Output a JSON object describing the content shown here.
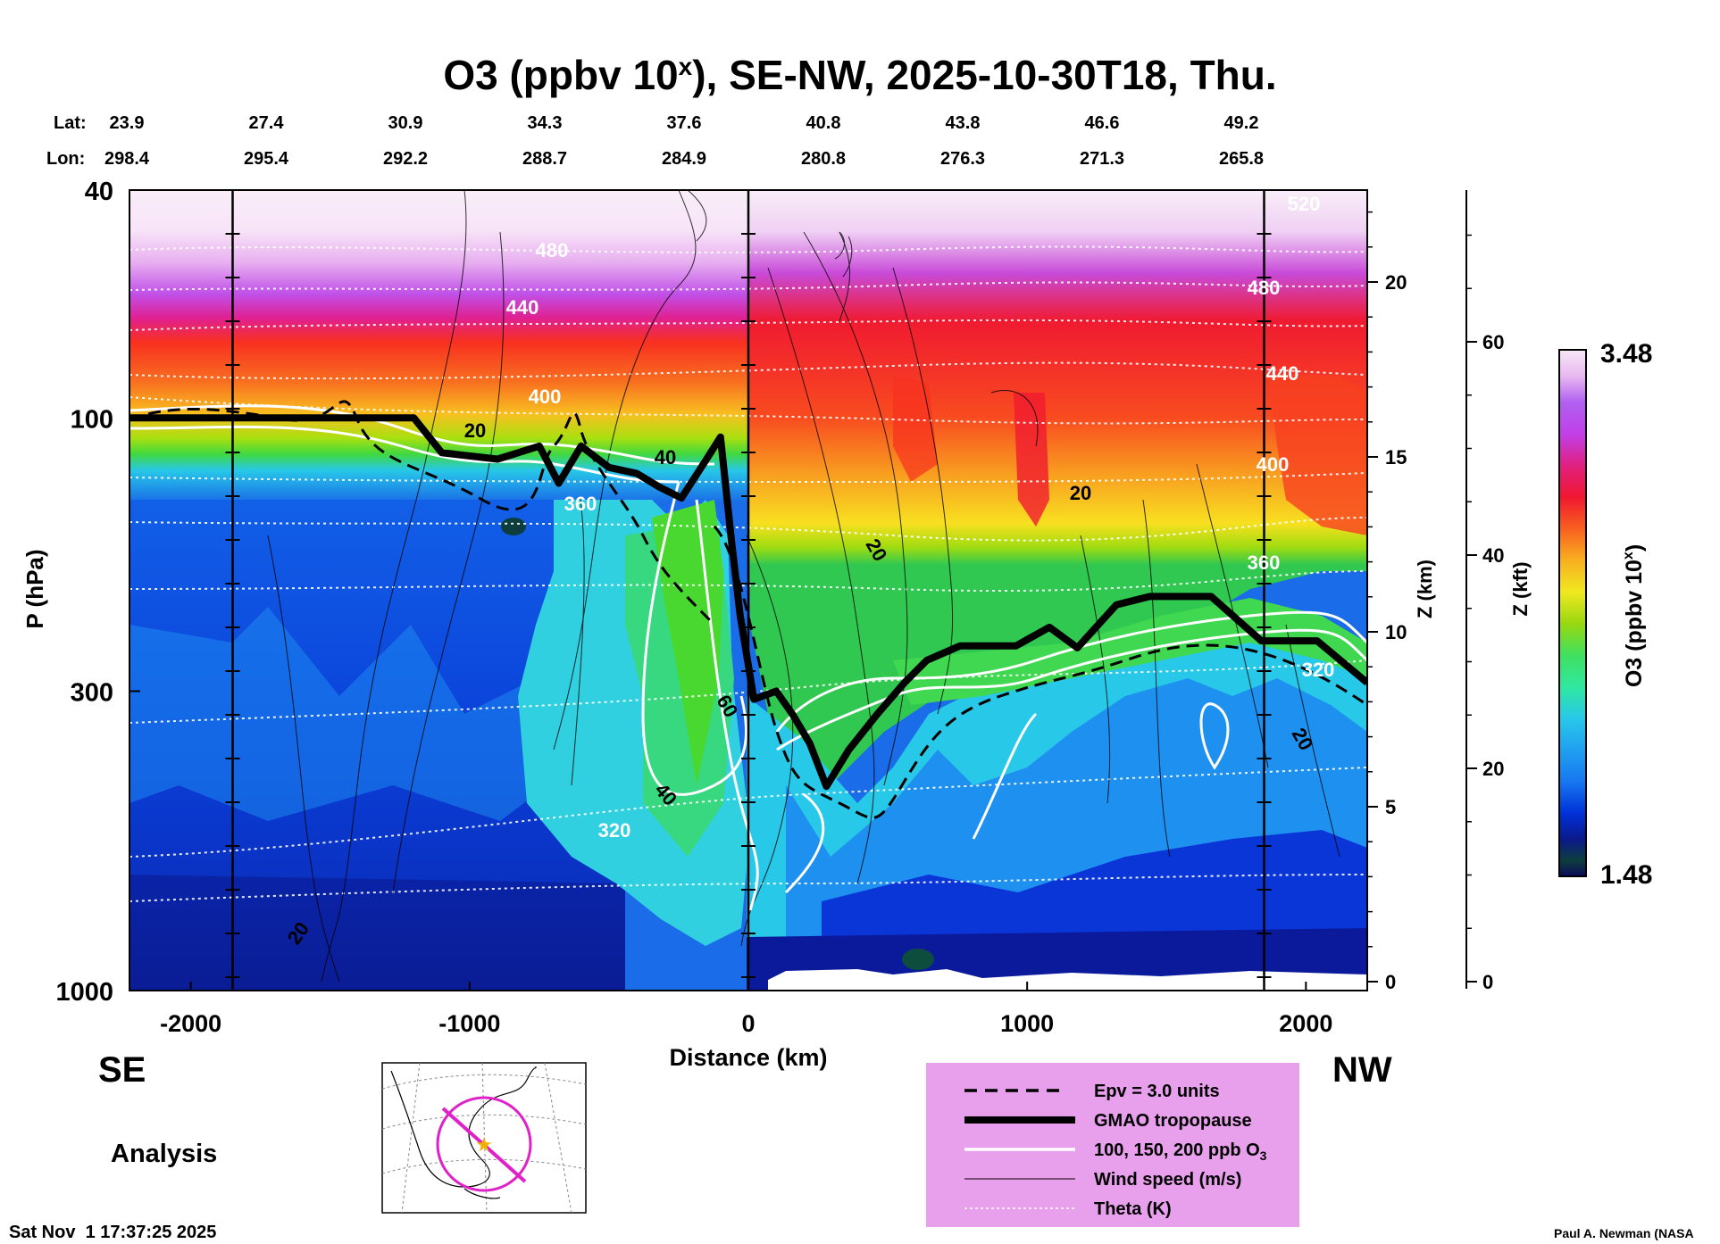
{
  "chart_data": {
    "type": "heatmap",
    "title": "O3 (ppbv 10",
    "title_sup": "x",
    "title_rest": "), SE-NW, 2025-10-30T18, Thu.",
    "xlabel": "Distance (km)",
    "ylabel": "P (hPa)",
    "y2label": "Z (km)",
    "y3label": "Z (kft)",
    "x_ticks": [
      "-2000",
      "-1000",
      "0",
      "1000",
      "2000"
    ],
    "x_tick_values": [
      -2000,
      -1000,
      0,
      1000,
      2000
    ],
    "xlim": [
      -2220,
      2220
    ],
    "y_ticks": [
      "40",
      "100",
      "300",
      "1000"
    ],
    "y_tick_values": [
      40,
      100,
      300,
      1000
    ],
    "ylim": [
      1000,
      40
    ],
    "z_km_ticks": [
      "0",
      "5",
      "10",
      "15",
      "20"
    ],
    "z_km_values": [
      0,
      5,
      10,
      15,
      20
    ],
    "z_kft_ticks": [
      "0",
      "20",
      "40",
      "60"
    ],
    "z_kft_values": [
      0,
      20,
      40,
      60
    ],
    "lat_label": "Lat:",
    "lon_label": "Lon:",
    "lat": [
      "23.9",
      "27.4",
      "30.9",
      "34.3",
      "37.6",
      "40.8",
      "43.8",
      "46.6",
      "49.2"
    ],
    "lon": [
      "298.4",
      "295.4",
      "292.2",
      "288.7",
      "284.9",
      "280.8",
      "276.3",
      "271.3",
      "265.8"
    ],
    "lat_lon_distance_km": [
      -2220,
      -1720,
      -1220,
      -720,
      -220,
      280,
      780,
      1280,
      1780
    ],
    "vertical_lines_km": [
      -1850,
      0,
      1850
    ],
    "colorbar": {
      "label": "O3 (ppbv 10",
      "label_sup": "x",
      "label_end": ")",
      "max_label": "3.48",
      "min_label": "1.48",
      "max": 3.48,
      "min": 1.48,
      "colors": [
        "#0a0a5a",
        "#0d3d3d",
        "#0a1a8a",
        "#0030d8",
        "#0a50f0",
        "#1878f0",
        "#20a0f0",
        "#28c8e8",
        "#30e0d0",
        "#30e8a0",
        "#40e060",
        "#60d820",
        "#98d810",
        "#c8e010",
        "#f0e820",
        "#f8d020",
        "#f8b020",
        "#f88820",
        "#f86020",
        "#f83020",
        "#f01830",
        "#e02080",
        "#d030c0",
        "#c040e8",
        "#b060f0",
        "#d090f0",
        "#e8b8f0",
        "#f8e8f8"
      ]
    },
    "tropopause_km_hpa": [
      [
        -2220,
        100
      ],
      [
        -1200,
        100
      ],
      [
        -1100,
        115
      ],
      [
        -900,
        118
      ],
      [
        -750,
        112
      ],
      [
        -680,
        130
      ],
      [
        -600,
        112
      ],
      [
        -500,
        122
      ],
      [
        -400,
        125
      ],
      [
        -320,
        132
      ],
      [
        -240,
        138
      ],
      [
        -150,
        118
      ],
      [
        -100,
        108
      ],
      [
        -60,
        165
      ],
      [
        -30,
        220
      ],
      [
        20,
        310
      ],
      [
        100,
        300
      ],
      [
        160,
        330
      ],
      [
        220,
        370
      ],
      [
        280,
        440
      ],
      [
        360,
        380
      ],
      [
        460,
        330
      ],
      [
        560,
        290
      ],
      [
        640,
        265
      ],
      [
        760,
        250
      ],
      [
        960,
        250
      ],
      [
        1080,
        232
      ],
      [
        1180,
        252
      ],
      [
        1320,
        212
      ],
      [
        1440,
        205
      ],
      [
        1660,
        205
      ],
      [
        1840,
        245
      ],
      [
        2040,
        245
      ],
      [
        2220,
        290
      ]
    ],
    "theta_labels": [
      "480",
      "440",
      "400",
      "360",
      "320",
      "520",
      "480",
      "440",
      "400",
      "360",
      "320"
    ],
    "wind_labels": [
      "20",
      "40",
      "20",
      "60",
      "40",
      "20",
      "20",
      "20"
    ],
    "legend": [
      {
        "label": "Epv = 3.0 units",
        "style": "dashed"
      },
      {
        "label": "GMAO tropopause",
        "style": "thick"
      },
      {
        "label": "100, 150, 200 ppb O",
        "sub": "3",
        "style": "white"
      },
      {
        "label": "Wind speed (m/s)",
        "style": "thin"
      },
      {
        "label": "Theta (K)",
        "style": "dotted"
      }
    ],
    "legend_bg": "#e8a0ec"
  },
  "labels": {
    "left_dir": "SE",
    "right_dir": "NW",
    "analysis": "Analysis",
    "timestamp": "Sat Nov  1 17:37:25 2025",
    "credit": "Paul A. Newman (NASA"
  }
}
